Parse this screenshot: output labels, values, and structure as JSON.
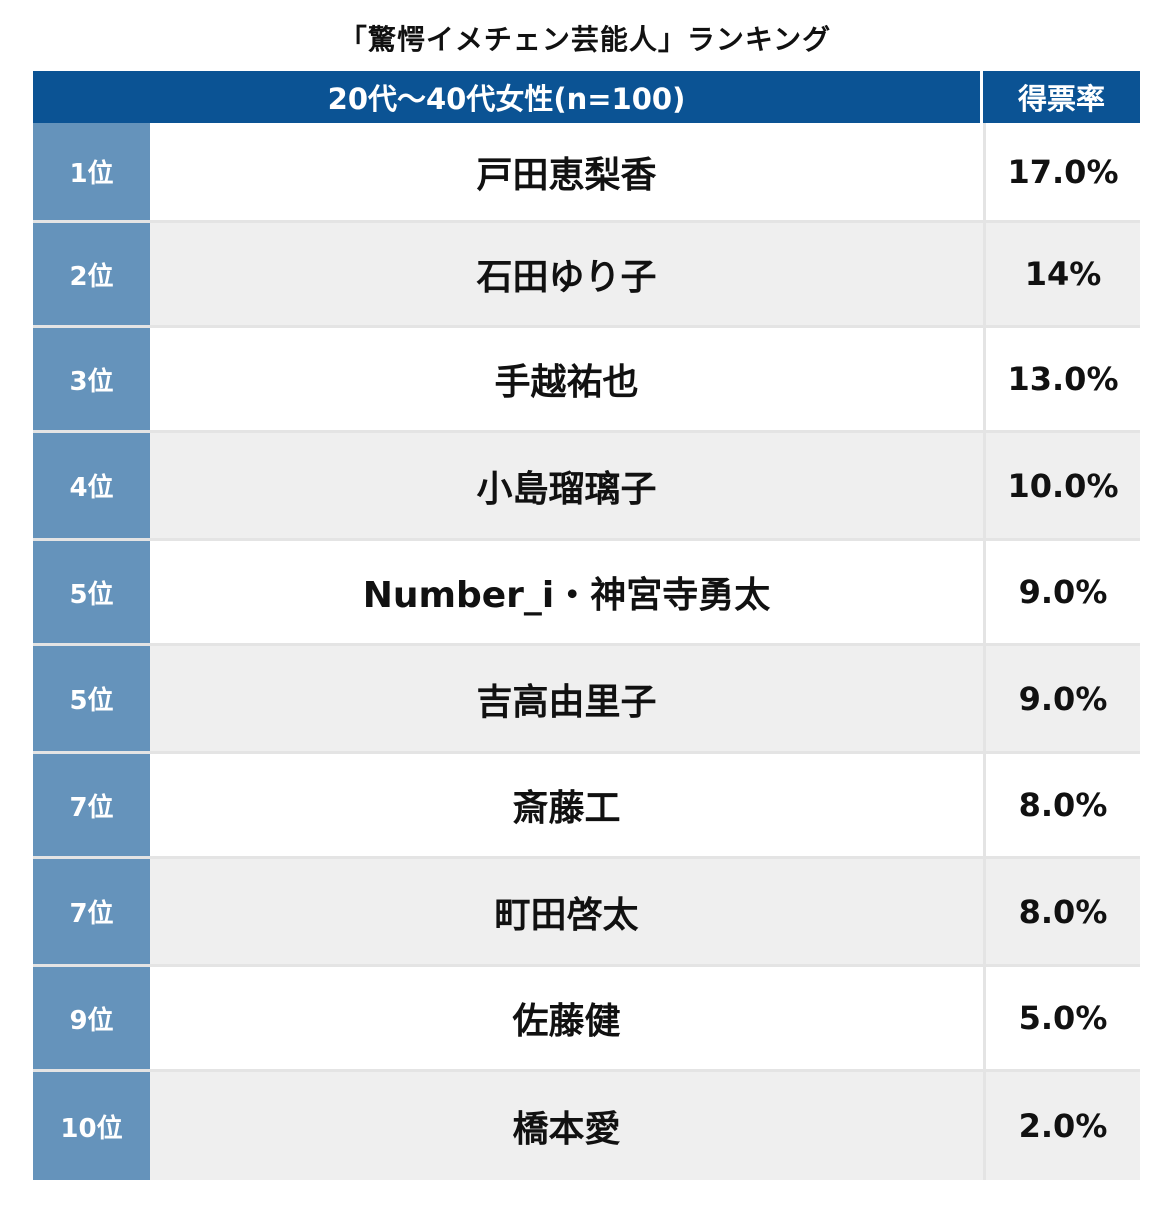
{
  "chart_data": {
    "type": "table",
    "title": "「驚愕イメチェン芸能人」ランキング",
    "columns": [
      "20代〜40代女性(n=100)",
      "得票率"
    ],
    "rows": [
      {
        "rank": "1位",
        "name": "戸田恵梨香",
        "rate": "17.0%",
        "value": 17.0
      },
      {
        "rank": "2位",
        "name": "石田ゆり子",
        "rate": "14%",
        "value": 14.0
      },
      {
        "rank": "3位",
        "name": "手越祐也",
        "rate": "13.0%",
        "value": 13.0
      },
      {
        "rank": "4位",
        "name": "小島瑠璃子",
        "rate": "10.0%",
        "value": 10.0
      },
      {
        "rank": "5位",
        "name": "Number_i・神宮寺勇太",
        "rate": "9.0%",
        "value": 9.0
      },
      {
        "rank": "5位",
        "name": "吉高由里子",
        "rate": "9.0%",
        "value": 9.0
      },
      {
        "rank": "7位",
        "name": "斎藤工",
        "rate": "8.0%",
        "value": 8.0
      },
      {
        "rank": "7位",
        "name": "町田啓太",
        "rate": "8.0%",
        "value": 8.0
      },
      {
        "rank": "9位",
        "name": "佐藤健",
        "rate": "5.0%",
        "value": 5.0
      },
      {
        "rank": "10位",
        "name": "橋本愛",
        "rate": "2.0%",
        "value": 2.0
      }
    ]
  },
  "colors": {
    "header_bg": "#0b5394",
    "rank_bg": "#6593bb",
    "alt_row_bg": "#efefef"
  }
}
